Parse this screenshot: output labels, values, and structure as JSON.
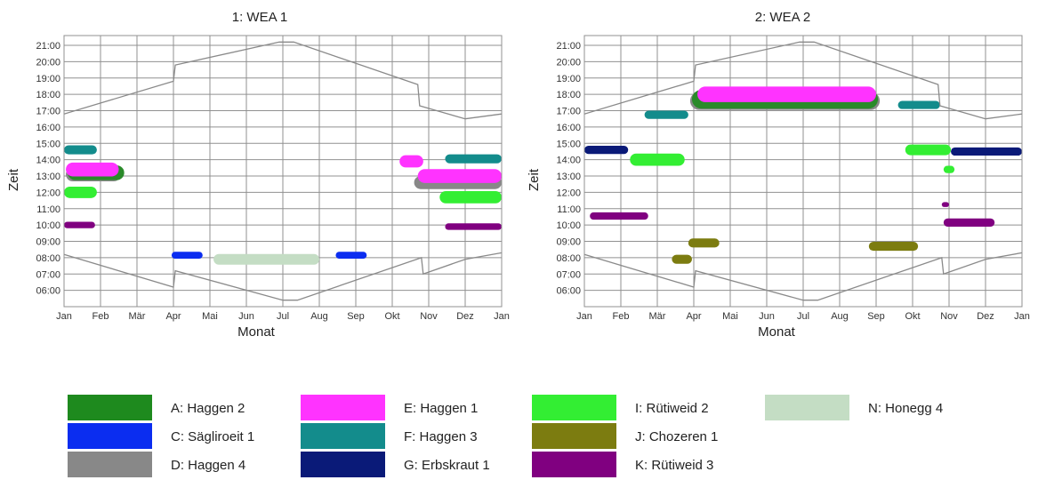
{
  "chart_data": [
    {
      "type": "area",
      "title": "1: WEA 1",
      "xlabel": "Monat",
      "ylabel": "Zeit",
      "x_ticks": [
        "Jan",
        "Feb",
        "Mär",
        "Apr",
        "Mai",
        "Jun",
        "Jul",
        "Aug",
        "Sep",
        "Okt",
        "Nov",
        "Dez",
        "Jan"
      ],
      "y_ticks": [
        "21:00",
        "20:00",
        "19:00",
        "18:00",
        "17:00",
        "16:00",
        "15:00",
        "14:00",
        "13:00",
        "12:00",
        "11:00",
        "10:00",
        "09:00",
        "08:00",
        "07:00",
        "06:00"
      ],
      "xlim": [
        0,
        12
      ],
      "ylim": [
        5.0,
        21.6
      ],
      "grid": true,
      "sunset": [
        [
          0,
          16.8
        ],
        [
          3,
          18.8
        ],
        [
          3.05,
          19.8
        ],
        [
          5.9,
          21.2
        ],
        [
          6.3,
          21.2
        ],
        [
          9.7,
          18.6
        ],
        [
          9.75,
          17.3
        ],
        [
          11.0,
          16.5
        ],
        [
          12,
          16.8
        ]
      ],
      "sunrise": [
        [
          0,
          8.2
        ],
        [
          3,
          6.2
        ],
        [
          3.05,
          7.2
        ],
        [
          6.0,
          5.4
        ],
        [
          6.4,
          5.4
        ],
        [
          9.8,
          8.0
        ],
        [
          9.85,
          7.0
        ],
        [
          11.0,
          7.9
        ],
        [
          12,
          8.3
        ]
      ],
      "shadows": [
        {
          "series": "F: Haggen 3",
          "color": "#138c8c",
          "blob": [
            0.0,
            14.6,
            0.9,
            0.55
          ]
        },
        {
          "series": "I: Rütiweid 2",
          "color": "#33ee33",
          "blob": [
            0.0,
            12.0,
            0.9,
            0.7
          ]
        },
        {
          "series": "D: Haggen 4",
          "color": "#888888",
          "blob": [
            0.05,
            13.1,
            1.5,
            0.85
          ]
        },
        {
          "series": "A: Haggen 2",
          "color": "#2a8a2a",
          "blob": [
            0.1,
            13.2,
            1.55,
            0.9
          ]
        },
        {
          "series": "E: Haggen 1",
          "color": "#ff33ff",
          "blob": [
            0.05,
            13.4,
            1.45,
            0.85
          ]
        },
        {
          "series": "K: Rütiweid 3",
          "color": "#800080",
          "blob": [
            0.0,
            10.0,
            0.85,
            0.4
          ]
        },
        {
          "series": "C: Sägliroeit 1",
          "color": "#0b2df0",
          "blob": [
            2.95,
            8.15,
            0.85,
            0.42
          ]
        },
        {
          "series": "C: Sägliroeit 1",
          "color": "#0b2df0",
          "blob": [
            7.45,
            8.15,
            0.85,
            0.42
          ]
        },
        {
          "series": "N: Honegg 4",
          "color": "#c4ddc4",
          "blob": [
            4.1,
            7.9,
            2.9,
            0.65
          ]
        },
        {
          "series": "E: Haggen 1",
          "color": "#ff33ff",
          "blob": [
            9.2,
            13.9,
            0.65,
            0.75
          ]
        },
        {
          "series": "D: Haggen 4",
          "color": "#888888",
          "blob": [
            9.6,
            12.6,
            2.4,
            0.8
          ]
        },
        {
          "series": "E: Haggen 1",
          "color": "#ff33ff",
          "blob": [
            9.7,
            13.0,
            2.3,
            0.85
          ]
        },
        {
          "series": "F: Haggen 3",
          "color": "#138c8c",
          "blob": [
            10.45,
            14.05,
            1.55,
            0.55
          ]
        },
        {
          "series": "I: Rütiweid 2",
          "color": "#33ee33",
          "blob": [
            10.3,
            11.7,
            1.7,
            0.75
          ]
        },
        {
          "series": "K: Rütiweid 3",
          "color": "#800080",
          "blob": [
            10.45,
            9.9,
            1.55,
            0.4
          ]
        }
      ]
    },
    {
      "type": "area",
      "title": "2: WEA 2",
      "xlabel": "Monat",
      "ylabel": "Zeit",
      "x_ticks": [
        "Jan",
        "Feb",
        "Mär",
        "Apr",
        "Mai",
        "Jun",
        "Jul",
        "Aug",
        "Sep",
        "Okt",
        "Nov",
        "Dez",
        "Jan"
      ],
      "y_ticks": [
        "21:00",
        "20:00",
        "19:00",
        "18:00",
        "17:00",
        "16:00",
        "15:00",
        "14:00",
        "13:00",
        "12:00",
        "11:00",
        "10:00",
        "09:00",
        "08:00",
        "07:00",
        "06:00"
      ],
      "xlim": [
        0,
        12
      ],
      "ylim": [
        5.0,
        21.6
      ],
      "grid": true,
      "sunset": [
        [
          0,
          16.8
        ],
        [
          3,
          18.8
        ],
        [
          3.05,
          19.8
        ],
        [
          5.9,
          21.2
        ],
        [
          6.3,
          21.2
        ],
        [
          9.7,
          18.6
        ],
        [
          9.75,
          17.3
        ],
        [
          11.0,
          16.5
        ],
        [
          12,
          16.8
        ]
      ],
      "sunrise": [
        [
          0,
          8.2
        ],
        [
          3,
          6.2
        ],
        [
          3.05,
          7.2
        ],
        [
          6.0,
          5.4
        ],
        [
          6.4,
          5.4
        ],
        [
          9.8,
          8.0
        ],
        [
          9.85,
          7.0
        ],
        [
          11.0,
          7.9
        ],
        [
          12,
          8.3
        ]
      ],
      "shadows": [
        {
          "series": "G: Erbskraut 1",
          "color": "#0a1a78",
          "blob": [
            0.0,
            14.6,
            1.2,
            0.5
          ]
        },
        {
          "series": "F: Haggen 3",
          "color": "#138c8c",
          "blob": [
            1.65,
            16.75,
            1.2,
            0.5
          ]
        },
        {
          "series": "I: Rütiweid 2",
          "color": "#33ee33",
          "blob": [
            1.25,
            14.0,
            1.5,
            0.75
          ]
        },
        {
          "series": "K: Rütiweid 3",
          "color": "#800080",
          "blob": [
            0.15,
            10.55,
            1.6,
            0.45
          ]
        },
        {
          "series": "J: Chozeren 1",
          "color": "#7c7c10",
          "blob": [
            2.4,
            7.9,
            0.55,
            0.55
          ]
        },
        {
          "series": "J: Chozeren 1",
          "color": "#7c7c10",
          "blob": [
            2.85,
            8.9,
            0.85,
            0.55
          ]
        },
        {
          "series": "D: Haggen 4",
          "color": "#888888",
          "blob": [
            2.9,
            17.6,
            5.2,
            1.1
          ]
        },
        {
          "series": "A: Haggen 2",
          "color": "#2a8a2a",
          "blob": [
            2.95,
            17.7,
            5.1,
            1.15
          ]
        },
        {
          "series": "E: Haggen 1",
          "color": "#ff33ff",
          "blob": [
            3.1,
            18.0,
            4.9,
            0.95
          ]
        },
        {
          "series": "F: Haggen 3",
          "color": "#138c8c",
          "blob": [
            8.6,
            17.35,
            1.15,
            0.5
          ]
        },
        {
          "series": "I: Rütiweid 2",
          "color": "#33ee33",
          "blob": [
            8.8,
            14.6,
            1.25,
            0.65
          ]
        },
        {
          "series": "I: Rütiweid 2",
          "color": "#33ee33",
          "blob": [
            9.85,
            13.4,
            0.3,
            0.45
          ]
        },
        {
          "series": "J: Chozeren 1",
          "color": "#7c7c10",
          "blob": [
            7.8,
            8.7,
            1.35,
            0.55
          ]
        },
        {
          "series": "G: Erbskraut 1",
          "color": "#0a1a78",
          "blob": [
            10.05,
            14.5,
            1.95,
            0.5
          ]
        },
        {
          "series": "K: Rütiweid 3",
          "color": "#800080",
          "blob": [
            9.8,
            11.25,
            0.2,
            0.3
          ]
        },
        {
          "series": "K: Rütiweid 3",
          "color": "#800080",
          "blob": [
            9.85,
            10.15,
            1.4,
            0.5
          ]
        }
      ]
    }
  ],
  "legend": [
    {
      "label": "A: Haggen 2",
      "color": "#1e8a1e"
    },
    {
      "label": "C: Sägliroeit 1",
      "color": "#0b2df0"
    },
    {
      "label": "D: Haggen 4",
      "color": "#888888"
    },
    {
      "label": "E: Haggen 1",
      "color": "#ff33ff"
    },
    {
      "label": "F: Haggen 3",
      "color": "#138c8c"
    },
    {
      "label": "G: Erbskraut 1",
      "color": "#0a1a78"
    },
    {
      "label": "I: Rütiweid 2",
      "color": "#33ee33"
    },
    {
      "label": "J: Chozeren 1",
      "color": "#7c7c10"
    },
    {
      "label": "K: Rütiweid 3",
      "color": "#800080"
    },
    {
      "label": "N: Honegg 4",
      "color": "#c4ddc4"
    }
  ],
  "colors": {
    "grid": "#909090",
    "curve": "#8a8a8a",
    "frame": "#909090"
  }
}
